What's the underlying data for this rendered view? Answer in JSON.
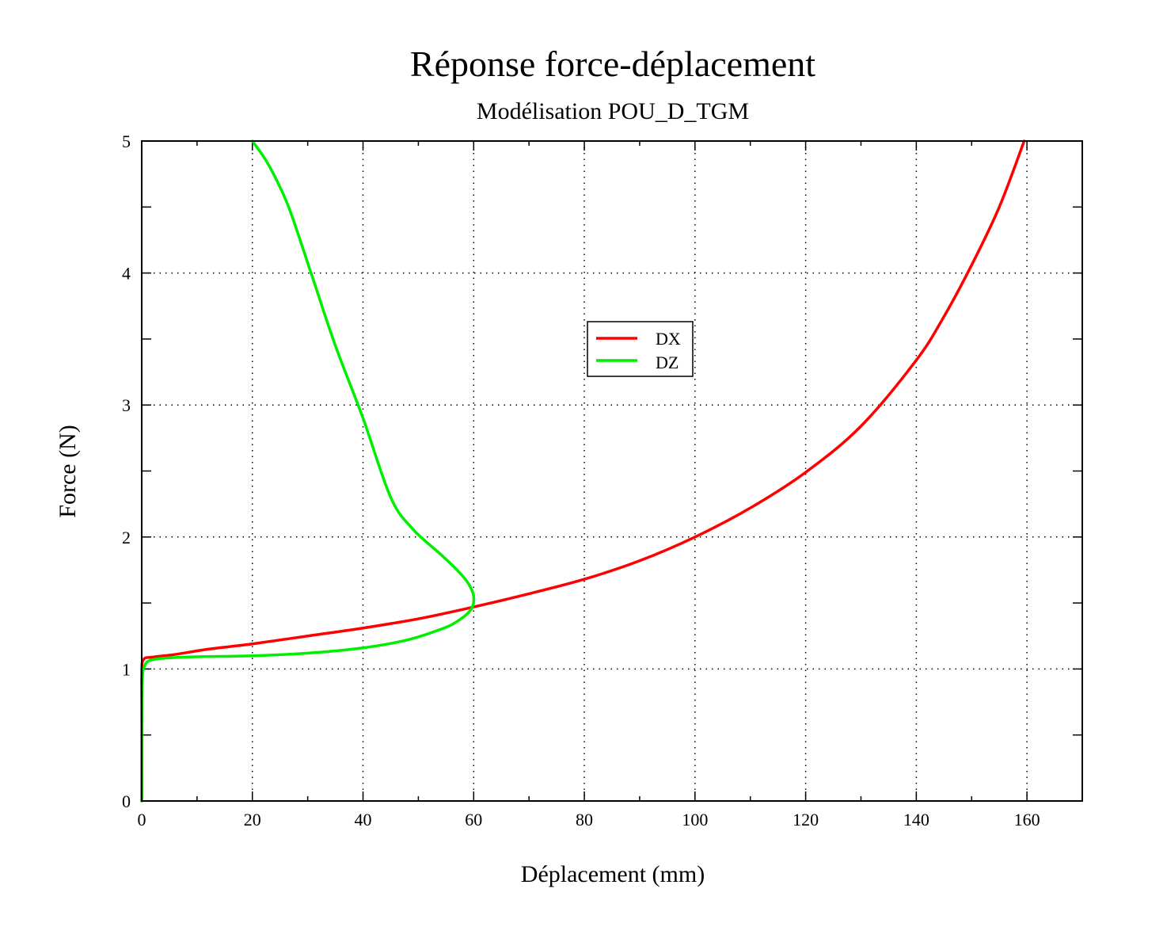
{
  "chart_data": {
    "type": "line",
    "title": "Réponse force-déplacement",
    "subtitle": "Modélisation POU_D_TGM",
    "xlabel": "Déplacement (mm)",
    "ylabel": "Force (N)",
    "xlim": [
      0,
      170
    ],
    "ylim": [
      0,
      5
    ],
    "x_ticks": [
      "0",
      "20",
      "40",
      "60",
      "80",
      "100",
      "120",
      "140",
      "160"
    ],
    "y_ticks": [
      "0",
      "1",
      "2",
      "3",
      "4",
      "5"
    ],
    "grid": true,
    "legend_position": "center",
    "series": [
      {
        "name": "DX",
        "color": "#ff0000",
        "points": [
          [
            0,
            0
          ],
          [
            0,
            0.5
          ],
          [
            0,
            0.95
          ],
          [
            0.3,
            1.07
          ],
          [
            2,
            1.09
          ],
          [
            6,
            1.11
          ],
          [
            12,
            1.15
          ],
          [
            20,
            1.19
          ],
          [
            30,
            1.25
          ],
          [
            40,
            1.31
          ],
          [
            50,
            1.38
          ],
          [
            60,
            1.47
          ],
          [
            70,
            1.57
          ],
          [
            80,
            1.68
          ],
          [
            90,
            1.82
          ],
          [
            100,
            2.0
          ],
          [
            110,
            2.22
          ],
          [
            120,
            2.49
          ],
          [
            130,
            2.84
          ],
          [
            140,
            3.34
          ],
          [
            145,
            3.67
          ],
          [
            150,
            4.06
          ],
          [
            155,
            4.5
          ],
          [
            159.5,
            5.0
          ]
        ]
      },
      {
        "name": "DZ",
        "color": "#00ee00",
        "points": [
          [
            0,
            0
          ],
          [
            0,
            0.5
          ],
          [
            0.1,
            0.9
          ],
          [
            0.5,
            1.02
          ],
          [
            2,
            1.07
          ],
          [
            8,
            1.09
          ],
          [
            20,
            1.1
          ],
          [
            30,
            1.12
          ],
          [
            40,
            1.16
          ],
          [
            48,
            1.22
          ],
          [
            54,
            1.3
          ],
          [
            57,
            1.36
          ],
          [
            59.5,
            1.45
          ],
          [
            60,
            1.55
          ],
          [
            59,
            1.65
          ],
          [
            57,
            1.75
          ],
          [
            54,
            1.87
          ],
          [
            49,
            2.06
          ],
          [
            45,
            2.3
          ],
          [
            40,
            2.9
          ],
          [
            35,
            3.45
          ],
          [
            31,
            3.95
          ],
          [
            27,
            4.45
          ],
          [
            25,
            4.65
          ],
          [
            22.5,
            4.85
          ],
          [
            20,
            5.0
          ]
        ]
      }
    ]
  }
}
